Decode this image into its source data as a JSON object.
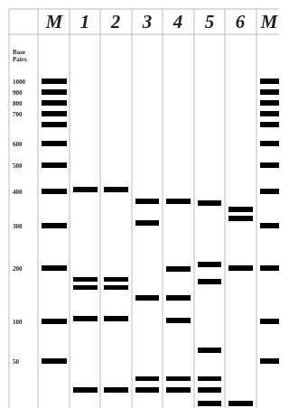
{
  "header": {
    "lanes": [
      "M",
      "1",
      "2",
      "3",
      "4",
      "5",
      "6",
      "M"
    ]
  },
  "size_axis": {
    "title": [
      "Base",
      "Pairs"
    ],
    "labels": [
      "1000",
      "900",
      "800",
      "700",
      "600",
      "500",
      "400",
      "300",
      "200",
      "100",
      "50"
    ]
  }
}
